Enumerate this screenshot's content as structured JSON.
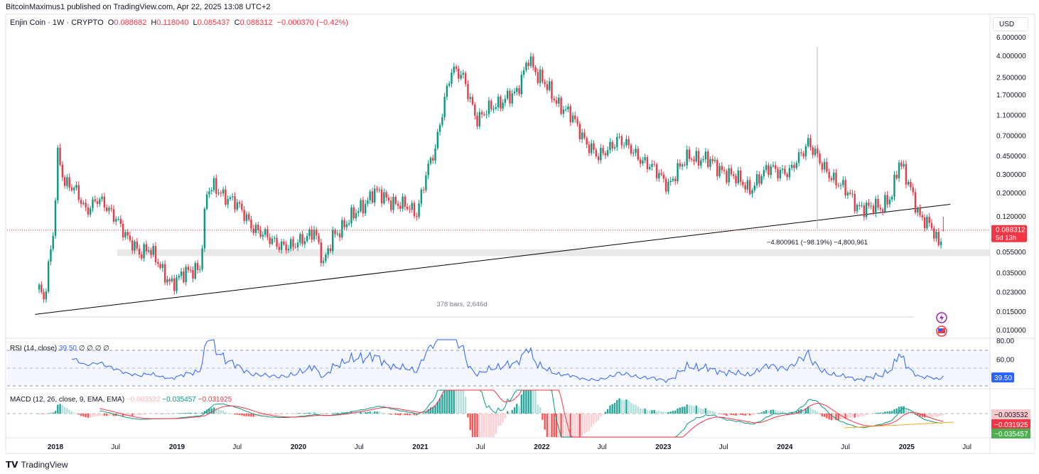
{
  "header": {
    "published": "BitcoinMaximus1 published on TradingView.com, Apr 22, 2025 13:08 UTC+2",
    "symbol": "Enjin Coin · 1W · CRYPTO",
    "o_label": "O",
    "o": "0.088682",
    "h_label": "H",
    "h": "0.118040",
    "l_label": "L",
    "l": "0.085437",
    "c_label": "C",
    "c": "0.088312",
    "change": "−0.000370 (−0.42%)"
  },
  "currency": "USD",
  "footer": {
    "brand": "TradingView"
  },
  "colors": {
    "up": "#089981",
    "down": "#f23645",
    "rsi": "#2962ff",
    "macd": "#089981",
    "signal": "#f23645",
    "trendline": "#000000",
    "zone": "#e0e0e0"
  },
  "chart_data": {
    "type": "candlestick",
    "title": "Enjin Coin · 1W · CRYPTO",
    "scale": "log",
    "ylim": [
      0.009,
      7
    ],
    "y_ticks": [
      "6.000000",
      "4.000000",
      "2.500000",
      "1.700000",
      "1.100000",
      "0.700000",
      "0.450000",
      "0.300000",
      "0.200000",
      "0.120000",
      "0.055000",
      "0.035000",
      "0.023000",
      "0.015000",
      "0.010000"
    ],
    "x_ticks": [
      {
        "label": "2018",
        "date": "2018-01-01"
      },
      {
        "label": "Jul",
        "date": "2018-07-01"
      },
      {
        "label": "2019",
        "date": "2019-01-01"
      },
      {
        "label": "Jul",
        "date": "2019-07-01"
      },
      {
        "label": "2020",
        "date": "2020-01-01"
      },
      {
        "label": "Jul",
        "date": "2020-07-01"
      },
      {
        "label": "2021",
        "date": "2021-01-01"
      },
      {
        "label": "Jul",
        "date": "2021-07-01"
      },
      {
        "label": "2022",
        "date": "2022-01-01"
      },
      {
        "label": "Jul",
        "date": "2022-07-01"
      },
      {
        "label": "2023",
        "date": "2023-01-01"
      },
      {
        "label": "Jul",
        "date": "2023-07-01"
      },
      {
        "label": "2024",
        "date": "2024-01-01"
      },
      {
        "label": "Jul",
        "date": "2024-07-01"
      },
      {
        "label": "2025",
        "date": "2025-01-01"
      },
      {
        "label": "Jul",
        "date": "2025-07-01"
      }
    ],
    "price_path_approx": [
      [
        "2017-11-13",
        0.025
      ],
      [
        "2017-11-27",
        0.018
      ],
      [
        "2017-12-25",
        0.08
      ],
      [
        "2018-01-08",
        0.48
      ],
      [
        "2018-01-29",
        0.25
      ],
      [
        "2018-03-05",
        0.2
      ],
      [
        "2018-04-02",
        0.14
      ],
      [
        "2018-05-07",
        0.17
      ],
      [
        "2018-07-02",
        0.12
      ],
      [
        "2018-08-06",
        0.07
      ],
      [
        "2018-09-10",
        0.055
      ],
      [
        "2018-10-08",
        0.06
      ],
      [
        "2018-11-19",
        0.035
      ],
      [
        "2018-12-17",
        0.028
      ],
      [
        "2019-02-04",
        0.035
      ],
      [
        "2019-03-11",
        0.04
      ],
      [
        "2019-04-01",
        0.2
      ],
      [
        "2019-04-22",
        0.22
      ],
      [
        "2019-06-17",
        0.17
      ],
      [
        "2019-08-12",
        0.1
      ],
      [
        "2019-10-07",
        0.07
      ],
      [
        "2019-12-16",
        0.06
      ],
      [
        "2020-02-17",
        0.09
      ],
      [
        "2020-03-16",
        0.04
      ],
      [
        "2020-04-13",
        0.08
      ],
      [
        "2020-05-25",
        0.1
      ],
      [
        "2020-06-29",
        0.14
      ],
      [
        "2020-08-17",
        0.2
      ],
      [
        "2020-10-19",
        0.16
      ],
      [
        "2020-12-21",
        0.13
      ],
      [
        "2021-01-18",
        0.3
      ],
      [
        "2021-02-15",
        0.5
      ],
      [
        "2021-03-15",
        1.6
      ],
      [
        "2021-04-05",
        3.0
      ],
      [
        "2021-05-10",
        2.4
      ],
      [
        "2021-06-21",
        1.0
      ],
      [
        "2021-08-09",
        1.3
      ],
      [
        "2021-09-13",
        1.6
      ],
      [
        "2021-10-18",
        1.7
      ],
      [
        "2021-11-22",
        4.0
      ],
      [
        "2021-12-20",
        2.5
      ],
      [
        "2022-01-17",
        2.0
      ],
      [
        "2022-02-21",
        1.4
      ],
      [
        "2022-04-04",
        1.0
      ],
      [
        "2022-05-16",
        0.6
      ],
      [
        "2022-06-20",
        0.42
      ],
      [
        "2022-08-15",
        0.65
      ],
      [
        "2022-10-17",
        0.45
      ],
      [
        "2022-12-26",
        0.28
      ],
      [
        "2023-01-16",
        0.24
      ],
      [
        "2023-03-20",
        0.45
      ],
      [
        "2023-05-15",
        0.4
      ],
      [
        "2023-07-17",
        0.3
      ],
      [
        "2023-09-18",
        0.22
      ],
      [
        "2023-11-20",
        0.35
      ],
      [
        "2024-01-15",
        0.3
      ],
      [
        "2024-03-11",
        0.62
      ],
      [
        "2024-04-22",
        0.35
      ],
      [
        "2024-06-10",
        0.25
      ],
      [
        "2024-08-05",
        0.15
      ],
      [
        "2024-10-14",
        0.14
      ],
      [
        "2024-11-18",
        0.2
      ],
      [
        "2024-12-09",
        0.38
      ],
      [
        "2025-01-13",
        0.22
      ],
      [
        "2025-02-10",
        0.12
      ],
      [
        "2025-03-17",
        0.09
      ],
      [
        "2025-04-07",
        0.065
      ],
      [
        "2025-04-21",
        0.088312
      ]
    ],
    "last_bar": {
      "open": 0.088682,
      "high": 0.11804,
      "low": 0.085437,
      "close": 0.088312
    },
    "last_price_label": "0.088312",
    "countdown": "5d 13h",
    "annotations": {
      "trendline": [
        [
          "2017-11-01",
          0.014
        ],
        [
          "2025-05-12",
          0.155
        ]
      ],
      "support_zone": [
        0.05,
        0.058
      ],
      "measure_text": "−4.800961 (−98.19%) −4,800,961",
      "range_text": "378 bars, 2,646d"
    },
    "rsi": {
      "label": "RSI (14, close)",
      "value": "39.50",
      "extra": "∅ ∅ ∅ ∅",
      "ticks": [
        "80.00",
        "60.00"
      ],
      "bands": [
        70,
        50,
        30
      ]
    },
    "macd": {
      "label": "MACD (12, 26, close, 9, EMA, EMA)",
      "histogram": "−0.003532",
      "macd": "−0.035457",
      "signal": "−0.031925"
    }
  }
}
